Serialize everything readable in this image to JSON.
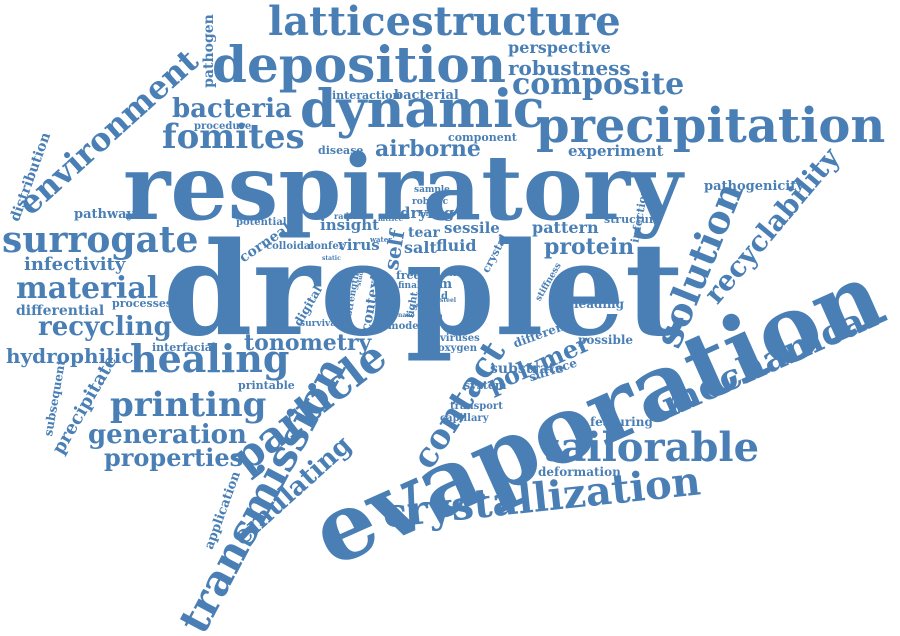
{
  "color": "#4a7fb5",
  "words": [
    {
      "id": "droplet",
      "text": "droplet"
    },
    {
      "id": "respiratory",
      "text": "respiratory"
    },
    {
      "id": "evaporation",
      "text": "evaporation"
    },
    {
      "id": "precipitation",
      "text": "precipitation"
    },
    {
      "id": "deposition",
      "text": "deposition"
    },
    {
      "id": "dynamic",
      "text": "dynamic"
    },
    {
      "id": "latticestructure",
      "text": "latticestructure"
    },
    {
      "id": "transmission",
      "text": "transmission"
    },
    {
      "id": "particle",
      "text": "particle"
    },
    {
      "id": "crystallization",
      "text": "crystallization"
    },
    {
      "id": "mechanical",
      "text": "mechanical"
    },
    {
      "id": "tailorable",
      "text": "tailorable"
    },
    {
      "id": "surrogate",
      "text": "surrogate"
    },
    {
      "id": "healing",
      "text": "healing"
    },
    {
      "id": "fomites",
      "text": "fomites"
    },
    {
      "id": "environment",
      "text": "environment"
    },
    {
      "id": "solution",
      "text": "solution"
    },
    {
      "id": "recyclability",
      "text": "recyclability"
    },
    {
      "id": "composite",
      "text": "composite"
    },
    {
      "id": "robustness",
      "text": "robustness"
    },
    {
      "id": "perspective",
      "text": "perspective"
    },
    {
      "id": "bacteria",
      "text": "bacteria"
    },
    {
      "id": "airborne",
      "text": "airborne"
    },
    {
      "id": "material",
      "text": "material"
    },
    {
      "id": "recycling",
      "text": "recycling"
    },
    {
      "id": "printing",
      "text": "printing"
    },
    {
      "id": "generation",
      "text": "generation"
    },
    {
      "id": "properties",
      "text": "properties"
    },
    {
      "id": "contact",
      "text": "contact"
    },
    {
      "id": "polymer",
      "text": "polymer"
    },
    {
      "id": "emulating",
      "text": "emulating"
    },
    {
      "id": "tonometry",
      "text": "tonometry"
    },
    {
      "id": "infectivity",
      "text": "infectivity"
    },
    {
      "id": "differential",
      "text": "differential"
    },
    {
      "id": "hydrophilic",
      "text": "hydrophilic"
    },
    {
      "id": "protein",
      "text": "protein"
    },
    {
      "id": "pattern",
      "text": "pattern"
    },
    {
      "id": "experiment",
      "text": "experiment"
    },
    {
      "id": "pathogenicity",
      "text": "pathogenicity"
    },
    {
      "id": "pathogen",
      "text": "pathogen"
    },
    {
      "id": "distribution",
      "text": "distribution"
    },
    {
      "id": "pathway",
      "text": "pathway"
    },
    {
      "id": "processes",
      "text": "processes"
    },
    {
      "id": "interfacial",
      "text": "interfacial"
    },
    {
      "id": "subsequent",
      "text": "subsequent"
    },
    {
      "id": "precipitate",
      "text": "precipitate"
    },
    {
      "id": "application",
      "text": "application"
    },
    {
      "id": "printable",
      "text": "printable"
    },
    {
      "id": "insight",
      "text": "insight"
    },
    {
      "id": "virus",
      "text": "virus"
    },
    {
      "id": "drying",
      "text": "drying"
    },
    {
      "id": "sessile",
      "text": "sessile"
    },
    {
      "id": "tear",
      "text": "tear"
    },
    {
      "id": "salt",
      "text": "salt"
    },
    {
      "id": "fluid",
      "text": "fluid"
    },
    {
      "id": "self",
      "text": "self"
    },
    {
      "id": "corneal",
      "text": "corneal"
    },
    {
      "id": "potential",
      "text": "potential"
    },
    {
      "id": "colloidal",
      "text": "colloidal"
    },
    {
      "id": "confer",
      "text": "confer"
    },
    {
      "id": "context",
      "text": "context"
    },
    {
      "id": "digital",
      "text": "digital"
    },
    {
      "id": "survival",
      "text": "survival"
    },
    {
      "id": "mode",
      "text": "mode"
    },
    {
      "id": "film",
      "text": "film"
    },
    {
      "id": "load",
      "text": "load"
    },
    {
      "id": "viruses",
      "text": "viruses"
    },
    {
      "id": "oxygen",
      "text": "oxygen"
    },
    {
      "id": "different",
      "text": "different"
    },
    {
      "id": "surface",
      "text": "surface"
    },
    {
      "id": "possible",
      "text": "possible"
    },
    {
      "id": "leading",
      "text": "leading"
    },
    {
      "id": "substrate",
      "text": "substrate"
    },
    {
      "id": "system",
      "text": "system"
    },
    {
      "id": "transport",
      "text": "transport"
    },
    {
      "id": "capillary",
      "text": "capillary"
    },
    {
      "id": "featuring",
      "text": "featuring"
    },
    {
      "id": "deformation",
      "text": "deformation"
    },
    {
      "id": "interaction",
      "text": "interaction"
    },
    {
      "id": "bacterial",
      "text": "bacterial"
    },
    {
      "id": "procedure",
      "text": "procedure"
    },
    {
      "id": "disease",
      "text": "disease"
    },
    {
      "id": "component",
      "text": "component"
    },
    {
      "id": "sample",
      "text": "sample"
    },
    {
      "id": "robotic",
      "text": "robotic"
    },
    {
      "id": "structure",
      "text": "structure"
    },
    {
      "id": "infection",
      "text": "infection"
    },
    {
      "id": "stiffness",
      "text": "stiffness"
    },
    {
      "id": "crystal",
      "text": "crystal"
    },
    {
      "id": "viral",
      "text": "viral"
    },
    {
      "id": "free",
      "text": "free"
    },
    {
      "id": "final",
      "text": "final"
    },
    {
      "id": "light",
      "text": "light"
    },
    {
      "id": "strength",
      "text": "strength"
    },
    {
      "id": "radius",
      "text": "radius"
    },
    {
      "id": "lattice",
      "text": "lattice"
    },
    {
      "id": "fomite",
      "text": "fomite"
    },
    {
      "id": "water",
      "text": "water"
    },
    {
      "id": "static",
      "text": "static"
    },
    {
      "id": "nano",
      "text": "nano"
    },
    {
      "id": "speed",
      "text": "speed"
    },
    {
      "id": "study",
      "text": "study"
    },
    {
      "id": "edge",
      "text": "edge"
    },
    {
      "id": "pure",
      "text": "pure"
    },
    {
      "id": "steel",
      "text": "steel"
    }
  ]
}
